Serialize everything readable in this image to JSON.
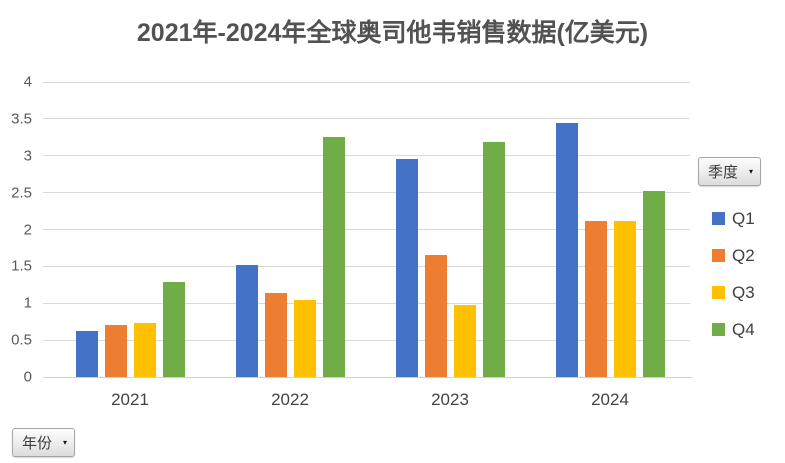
{
  "chart_data": {
    "type": "bar",
    "title": "2021年-2024年全球奥司他韦销售数据(亿美元)",
    "categories": [
      "2021",
      "2022",
      "2023",
      "2024"
    ],
    "series": [
      {
        "name": "Q1",
        "color": "#4472C4",
        "values": [
          0.63,
          1.52,
          2.95,
          3.44
        ]
      },
      {
        "name": "Q2",
        "color": "#ED7D31",
        "values": [
          0.7,
          1.14,
          1.65,
          2.11
        ]
      },
      {
        "name": "Q3",
        "color": "#FFC000",
        "values": [
          0.73,
          1.05,
          0.98,
          2.11
        ]
      },
      {
        "name": "Q4",
        "color": "#70AD47",
        "values": [
          1.29,
          3.26,
          3.19,
          2.52
        ]
      }
    ],
    "xlabel": "年份",
    "ylabel": "",
    "ylim": [
      0,
      4
    ],
    "yticks": [
      "0",
      "0.5",
      "1",
      "1.5",
      "2",
      "2.5",
      "3",
      "3.5",
      "4"
    ],
    "grid": "horizontal",
    "legend_position": "right"
  },
  "field_buttons": {
    "series_label": "季度",
    "axis_label": "年份",
    "dropdown_arrow": "▾"
  },
  "colors": {
    "gridline": "#d9d9d9",
    "axis_text": "#595959",
    "title_text": "#525252",
    "background": "#ffffff"
  }
}
